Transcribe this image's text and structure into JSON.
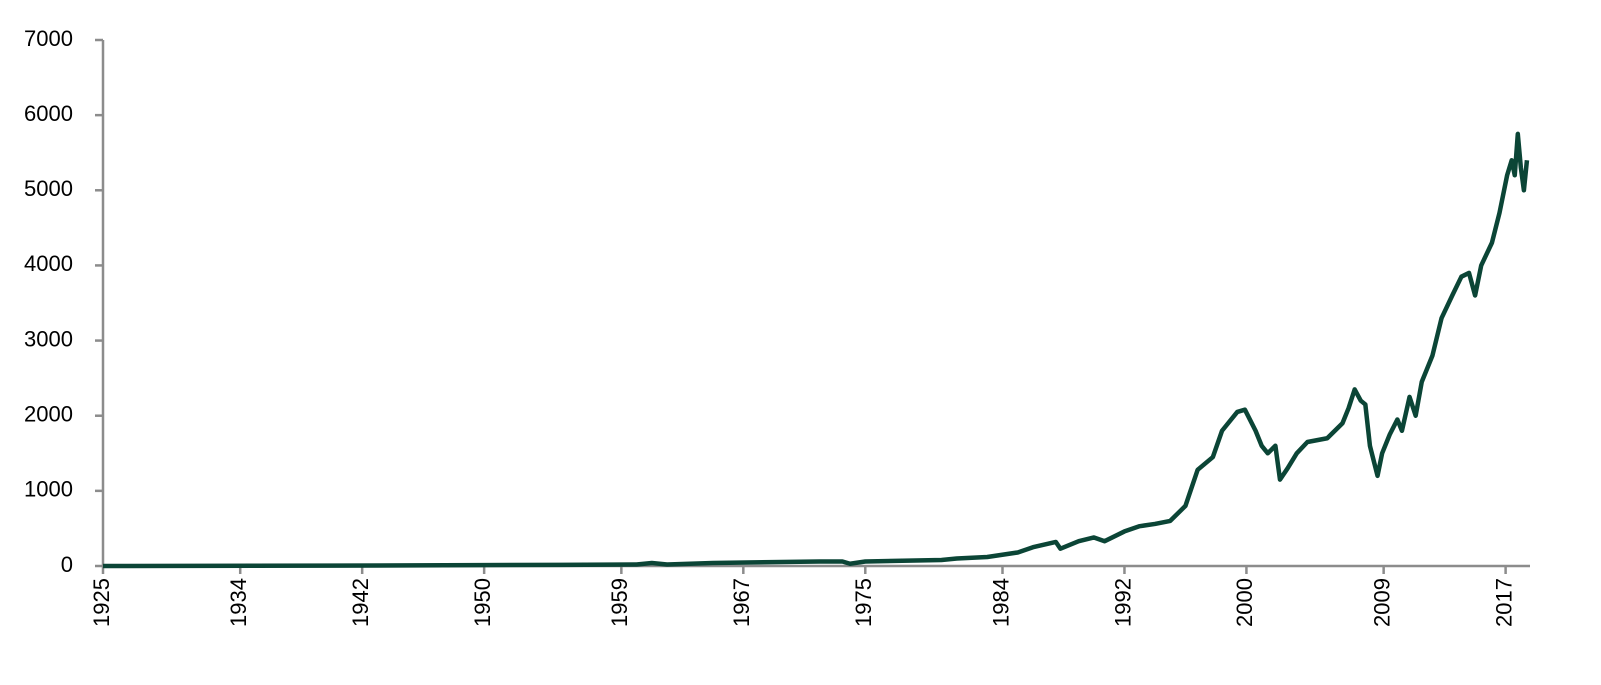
{
  "chart_data": {
    "type": "line",
    "x": [
      1925,
      1940,
      1955,
      1960,
      1961,
      1962,
      1965,
      1972,
      1973.5,
      1974,
      1975,
      1980,
      1981,
      1983,
      1985,
      1986,
      1987.5,
      1987.8,
      1989,
      1990,
      1990.7,
      1992,
      1993,
      1994,
      1995,
      1996,
      1996.8,
      1997.8,
      1998.4,
      1999.4,
      1999.9,
      2000.6,
      2001,
      2001.4,
      2001.9,
      2002.2,
      2002.7,
      2003.3,
      2004,
      2005.3,
      2006.3,
      2006.7,
      2007.1,
      2007.5,
      2007.8,
      2008.1,
      2008.6,
      2008.9,
      2009.4,
      2009.9,
      2010.2,
      2010.7,
      2011.1,
      2011.5,
      2012.2,
      2012.8,
      2013.5,
      2014.1,
      2014.6,
      2015,
      2015.4,
      2016.1,
      2016.6,
      2017.1,
      2017.4,
      2017.6,
      2017.8,
      2018,
      2018.2,
      2018.4
    ],
    "series": [
      {
        "color": "#0b4536",
        "values": [
          0,
          5,
          15,
          20,
          40,
          20,
          40,
          60,
          60,
          30,
          60,
          80,
          100,
          120,
          180,
          250,
          320,
          230,
          330,
          380,
          330,
          460,
          530,
          560,
          600,
          800,
          1280,
          1450,
          1800,
          2050,
          2080,
          1800,
          1600,
          1500,
          1600,
          1150,
          1300,
          1500,
          1650,
          1700,
          1900,
          2100,
          2350,
          2200,
          2150,
          1600,
          1200,
          1500,
          1750,
          1950,
          1800,
          2250,
          2000,
          2450,
          2800,
          3300,
          3600,
          3850,
          3900,
          3600,
          4000,
          4300,
          4700,
          5200,
          5400,
          5200,
          5750,
          5300,
          5000,
          5400
        ]
      }
    ],
    "xlim": [
      1925,
      2018.6
    ],
    "xticks": [
      1925,
      1934,
      1942,
      1950,
      1959,
      1967,
      1975,
      1984,
      1992,
      2000,
      2009,
      2017
    ],
    "ylim": [
      0,
      7000
    ],
    "yticks": [
      0,
      1000,
      2000,
      3000,
      4000,
      5000,
      6000,
      7000
    ],
    "grid": false
  }
}
